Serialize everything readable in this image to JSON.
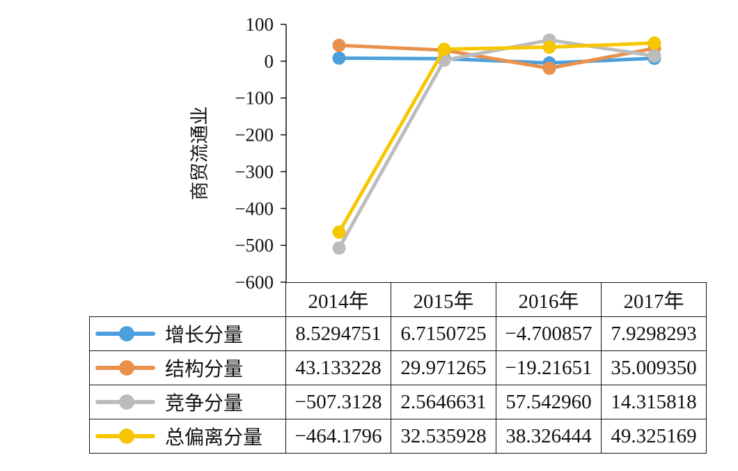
{
  "chart_data": {
    "type": "line",
    "title": "",
    "xlabel": "",
    "ylabel": "商贸流通业",
    "categories": [
      "2014年",
      "2015年",
      "2016年",
      "2017年"
    ],
    "ylim": [
      -600,
      100
    ],
    "yticks": [
      100,
      0,
      -100,
      -200,
      -300,
      -400,
      -500,
      -600
    ],
    "ytick_labels": [
      "100",
      "0",
      "−100",
      "−200",
      "−300",
      "−400",
      "−500",
      "−600"
    ],
    "grid": false,
    "legend": "data-table",
    "series": [
      {
        "name": "增长分量",
        "color": "#4a9fdc",
        "values": [
          8.5294751,
          6.7150725,
          -4.700857,
          7.9298293
        ],
        "labels": [
          "8.5294751",
          "6.7150725",
          "−4.700857",
          "7.9298293"
        ]
      },
      {
        "name": "结构分量",
        "color": "#e8914d",
        "values": [
          43.133228,
          29.971265,
          -19.21651,
          35.00935
        ],
        "labels": [
          "43.133228",
          "29.971265",
          "−19.21651",
          "35.009350"
        ]
      },
      {
        "name": "竞争分量",
        "color": "#bcbcbc",
        "values": [
          -507.3128,
          2.5646631,
          57.54296,
          14.315818
        ],
        "labels": [
          "−507.3128",
          "2.5646631",
          "57.542960",
          "14.315818"
        ]
      },
      {
        "name": "总偏离分量",
        "color": "#f6c700",
        "values": [
          -464.1796,
          32.535928,
          38.326444,
          49.325169
        ],
        "labels": [
          "−464.1796",
          "32.535928",
          "38.326444",
          "49.325169"
        ]
      }
    ]
  }
}
